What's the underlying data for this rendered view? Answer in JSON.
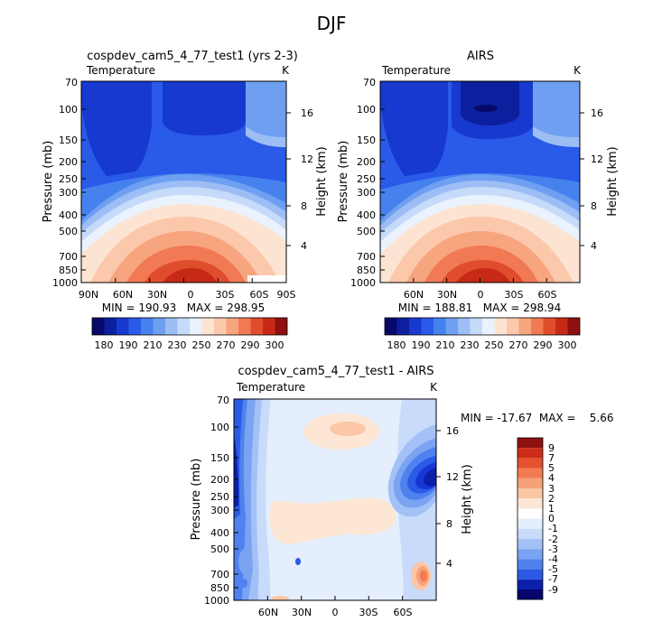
{
  "page_title": "DJF",
  "colors": {
    "abs_scale": [
      "#08086b",
      "#0c1f9e",
      "#1739cf",
      "#2a5ae8",
      "#4682ee",
      "#6f9ff1",
      "#9dbef5",
      "#c6daf9",
      "#e9f2fd",
      "#fde4d2",
      "#fbc8ac",
      "#f7a57f",
      "#f17a55",
      "#e04d2d",
      "#c62a16",
      "#8f1010"
    ],
    "diff_scale": [
      "#06066e",
      "#0c1faa",
      "#1836d4",
      "#2a5ae6",
      "#4f82ee",
      "#7aa3f2",
      "#a3c1f6",
      "#c9dbfa",
      "#e4eefc",
      "#fde6d3",
      "#fbc7a6",
      "#f7a178",
      "#f27a50",
      "#e4512e",
      "#cc2c17",
      "#8f1010"
    ]
  },
  "chart_data": [
    {
      "type": "heatmap",
      "id": "model",
      "title": "cospdev_cam5_4_77_test1 (yrs 2-3)",
      "left_label": "Temperature",
      "right_label": "K",
      "ylabel": "Pressure (mb)",
      "y2label": "Height (km)",
      "x_ticks": [
        "90N",
        "60N",
        "30N",
        "0",
        "30S",
        "60S",
        "90S"
      ],
      "x_tick_values": [
        -90,
        -60,
        -30,
        0,
        30,
        60,
        90
      ],
      "xlim": [
        -90,
        90
      ],
      "y_ticks": [
        "70",
        "100",
        "150",
        "200",
        "250",
        "300",
        "400",
        "500",
        "700",
        "850",
        "1000"
      ],
      "y_tick_values": [
        70,
        100,
        150,
        200,
        250,
        300,
        400,
        500,
        700,
        850,
        1000
      ],
      "ylim": [
        70,
        1000
      ],
      "y2_ticks": [
        "16",
        "12",
        "8",
        "4"
      ],
      "y2_tick_values": [
        16,
        12,
        8,
        4
      ],
      "min_max_text": "MIN = 190.93   MAX = 298.95",
      "min": 190.93,
      "max": 298.95,
      "levels": [
        "180",
        "190",
        "200",
        "210",
        "220",
        "230",
        "240",
        "250",
        "260",
        "270",
        "280",
        "290",
        "300"
      ],
      "colorbar_labels": [
        "180",
        "190",
        "210",
        "230",
        "250",
        "270",
        "290",
        "300"
      ]
    },
    {
      "type": "heatmap",
      "id": "obs",
      "title": "AIRS",
      "left_label": "Temperature",
      "right_label": "K",
      "ylabel": "Pressure (mb)",
      "y2label": "Height (km)",
      "x_ticks": [
        "60N",
        "30N",
        "0",
        "30S",
        "60S"
      ],
      "x_tick_values": [
        -60,
        -30,
        0,
        30,
        60
      ],
      "xlim": [
        -90,
        90
      ],
      "y_ticks": [
        "70",
        "100",
        "150",
        "200",
        "250",
        "300",
        "400",
        "500",
        "700",
        "850",
        "1000"
      ],
      "y_tick_values": [
        70,
        100,
        150,
        200,
        250,
        300,
        400,
        500,
        700,
        850,
        1000
      ],
      "ylim": [
        70,
        1000
      ],
      "y2_ticks": [
        "16",
        "12",
        "8",
        "4"
      ],
      "y2_tick_values": [
        16,
        12,
        8,
        4
      ],
      "min_max_text": "MIN = 188.81   MAX = 298.94",
      "min": 188.81,
      "max": 298.94,
      "colorbar_labels": [
        "180",
        "190",
        "210",
        "230",
        "250",
        "270",
        "290",
        "300"
      ]
    },
    {
      "type": "heatmap",
      "id": "diff",
      "title": "cospdev_cam5_4_77_test1 - AIRS",
      "left_label": "Temperature",
      "right_label": "K",
      "ylabel": "Pressure (mb)",
      "y2label": "Height (km)",
      "x_ticks": [
        "60N",
        "30N",
        "0",
        "30S",
        "60S"
      ],
      "x_tick_values": [
        -60,
        -30,
        0,
        30,
        60
      ],
      "xlim": [
        -90,
        90
      ],
      "y_ticks": [
        "70",
        "100",
        "150",
        "200",
        "250",
        "300",
        "400",
        "500",
        "700",
        "850",
        "1000"
      ],
      "y_tick_values": [
        70,
        100,
        150,
        200,
        250,
        300,
        400,
        500,
        700,
        850,
        1000
      ],
      "ylim": [
        70,
        1000
      ],
      "y2_ticks": [
        "16",
        "12",
        "8",
        "4"
      ],
      "y2_tick_values": [
        16,
        12,
        8,
        4
      ],
      "min_max_text": "MIN = -17.67  MAX =    5.66",
      "min": -17.67,
      "max": 5.66,
      "levels": [
        "9",
        "7",
        "5",
        "4",
        "3",
        "2",
        "1",
        "0",
        "-1",
        "-2",
        "-3",
        "-4",
        "-5",
        "-7",
        "-9"
      ]
    }
  ]
}
